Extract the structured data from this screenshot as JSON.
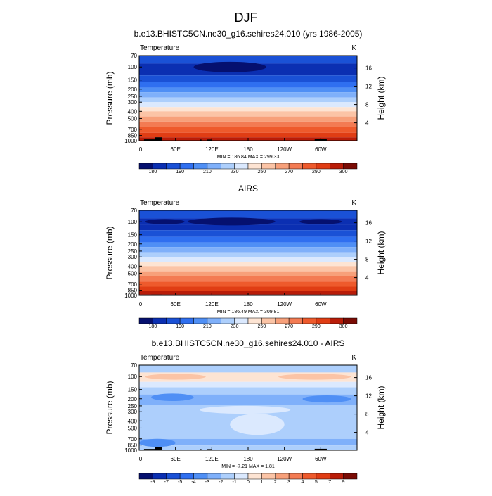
{
  "figure_title": "DJF",
  "colors": {
    "temp_palette": [
      "#05106f",
      "#0b2fb2",
      "#1a51d6",
      "#2f6ff0",
      "#4f8ff5",
      "#7fb0fa",
      "#adcffc",
      "#dbe9fe",
      "#fde4d3",
      "#fbc4a6",
      "#f7a07a",
      "#f37b53",
      "#ee5a2c",
      "#e03d14",
      "#b91c08",
      "#7a0b04"
    ],
    "diff_palette": [
      "#05106f",
      "#0b2fb2",
      "#1a51d6",
      "#2f6ff0",
      "#4f8ff5",
      "#7fb0fa",
      "#adcffc",
      "#dbe9fe",
      "#fde4d3",
      "#fbc4a6",
      "#f7a07a",
      "#f37b53",
      "#ee5a2c",
      "#e03d14",
      "#b91c08",
      "#7a0b04"
    ],
    "topography": "#000000"
  },
  "chart_data": [
    {
      "type": "heatmap",
      "title": "b.e13.BHISTC5CN.ne30_g16.sehires24.010 (yrs 1986-2005)",
      "left_label": "Temperature",
      "right_label": "K",
      "ylabel": "Pressure (mb)",
      "y2label": "Height (km)",
      "x_ticks": [
        "0",
        "60E",
        "120E",
        "180",
        "120W",
        "60W"
      ],
      "x_range_deg_east": [
        0,
        360
      ],
      "pressure_ticks": [
        70,
        100,
        150,
        200,
        250,
        300,
        400,
        500,
        700,
        850,
        1000
      ],
      "pressure_range": [
        70,
        1000
      ],
      "height_ticks": [
        4,
        8,
        12,
        16
      ],
      "minmax_text": "MIN = 186.84   MAX = 299.33",
      "colorbar": {
        "tick_labels": [
          "180",
          "190",
          "210",
          "230",
          "250",
          "270",
          "290",
          "300"
        ],
        "tick_box_index": [
          1,
          3,
          5,
          7,
          9,
          11,
          13,
          15
        ]
      },
      "profile_levels": [
        {
          "p": 70,
          "c": 2
        },
        {
          "p": 90,
          "c": 1
        },
        {
          "p": 110,
          "c": 1
        },
        {
          "p": 130,
          "c": 2
        },
        {
          "p": 160,
          "c": 3
        },
        {
          "p": 190,
          "c": 4
        },
        {
          "p": 220,
          "c": 5
        },
        {
          "p": 260,
          "c": 6
        },
        {
          "p": 300,
          "c": 7
        },
        {
          "p": 350,
          "c": 8
        },
        {
          "p": 400,
          "c": 9
        },
        {
          "p": 470,
          "c": 10
        },
        {
          "p": 550,
          "c": 11
        },
        {
          "p": 650,
          "c": 12
        },
        {
          "p": 780,
          "c": 13
        },
        {
          "p": 900,
          "c": 14
        }
      ],
      "features": [
        {
          "kind": "blob",
          "lon": [
            90,
            210
          ],
          "p": [
            85,
            118
          ],
          "c": 0
        }
      ],
      "topo": [
        {
          "lon": [
            8,
            38
          ],
          "p": [
            960,
            1000
          ]
        },
        {
          "lon": [
            26,
            38
          ],
          "p": [
            900,
            1000
          ]
        },
        {
          "lon": [
            100,
            103
          ],
          "p": [
            965,
            1000
          ]
        },
        {
          "lon": [
            112,
            120
          ],
          "p": [
            965,
            1000
          ]
        },
        {
          "lon": [
            290,
            310
          ],
          "p": [
            955,
            1000
          ]
        }
      ]
    },
    {
      "type": "heatmap",
      "title": "AIRS",
      "left_label": "Temperature",
      "right_label": "K",
      "ylabel": "Pressure (mb)",
      "y2label": "Height (km)",
      "x_ticks": [
        "0",
        "60E",
        "120E",
        "180",
        "120W",
        "60W"
      ],
      "x_range_deg_east": [
        0,
        360
      ],
      "pressure_ticks": [
        70,
        100,
        150,
        200,
        250,
        300,
        400,
        500,
        700,
        850,
        1000
      ],
      "pressure_range": [
        70,
        1000
      ],
      "height_ticks": [
        4,
        8,
        12,
        16
      ],
      "minmax_text": "MIN = 186.49   MAX = 309.81",
      "colorbar": {
        "tick_labels": [
          "180",
          "190",
          "210",
          "230",
          "250",
          "270",
          "290",
          "300"
        ],
        "tick_box_index": [
          1,
          3,
          5,
          7,
          9,
          11,
          13,
          15
        ]
      },
      "profile_levels": [
        {
          "p": 70,
          "c": 2
        },
        {
          "p": 90,
          "c": 1
        },
        {
          "p": 110,
          "c": 1
        },
        {
          "p": 130,
          "c": 2
        },
        {
          "p": 160,
          "c": 3
        },
        {
          "p": 190,
          "c": 4
        },
        {
          "p": 220,
          "c": 5
        },
        {
          "p": 260,
          "c": 6
        },
        {
          "p": 300,
          "c": 7
        },
        {
          "p": 350,
          "c": 8
        },
        {
          "p": 400,
          "c": 9
        },
        {
          "p": 470,
          "c": 10
        },
        {
          "p": 550,
          "c": 11
        },
        {
          "p": 650,
          "c": 12
        },
        {
          "p": 760,
          "c": 13
        },
        {
          "p": 870,
          "c": 14
        },
        {
          "p": 960,
          "c": 15
        }
      ],
      "features": [
        {
          "kind": "blob",
          "lon": [
            10,
            75
          ],
          "p": [
            92,
            108
          ],
          "c": 0
        },
        {
          "kind": "blob",
          "lon": [
            80,
            225
          ],
          "p": [
            88,
            112
          ],
          "c": 0
        },
        {
          "kind": "blob",
          "lon": [
            265,
            335
          ],
          "p": [
            92,
            108
          ],
          "c": 0
        }
      ],
      "topo": [
        {
          "lon": [
            20,
            38
          ],
          "p": [
            975,
            1000
          ]
        }
      ]
    },
    {
      "type": "heatmap",
      "title": "b.e13.BHISTC5CN.ne30_g16.sehires24.010 - AIRS",
      "left_label": "Temperature",
      "right_label": "K",
      "ylabel": "Pressure (mb)",
      "y2label": "Height (km)",
      "x_ticks": [
        "0",
        "60E",
        "120E",
        "180",
        "120W",
        "60W"
      ],
      "x_range_deg_east": [
        0,
        360
      ],
      "pressure_ticks": [
        70,
        100,
        150,
        200,
        250,
        300,
        400,
        500,
        700,
        850,
        1000
      ],
      "pressure_range": [
        70,
        1000
      ],
      "height_ticks": [
        4,
        8,
        12,
        16
      ],
      "minmax_text": "MIN = -7.21   MAX =  1.81",
      "colorbar": {
        "tick_labels": [
          "-9",
          "-7",
          "-5",
          "-4",
          "-3",
          "-2",
          "-1",
          "0",
          "1",
          "2",
          "3",
          "4",
          "5",
          "7",
          "9"
        ],
        "tick_box_index": [
          1,
          2,
          3,
          4,
          5,
          6,
          7,
          8,
          9,
          10,
          11,
          12,
          13,
          14,
          15
        ]
      },
      "profile_levels": [
        {
          "p": 70,
          "c": 6
        },
        {
          "p": 88,
          "c": 8
        },
        {
          "p": 118,
          "c": 7
        },
        {
          "p": 140,
          "c": 6
        },
        {
          "p": 175,
          "c": 5
        },
        {
          "p": 240,
          "c": 6
        },
        {
          "p": 700,
          "c": 5
        },
        {
          "p": 860,
          "c": 6
        }
      ],
      "features": [
        {
          "kind": "blob",
          "lon": [
            10,
            110
          ],
          "p": [
            92,
            110
          ],
          "c": 9
        },
        {
          "kind": "blob",
          "lon": [
            130,
            210
          ],
          "p": [
            92,
            110
          ],
          "c": 8
        },
        {
          "kind": "blob",
          "lon": [
            230,
            350
          ],
          "p": [
            92,
            110
          ],
          "c": 9
        },
        {
          "kind": "blob",
          "lon": [
            20,
            90
          ],
          "p": [
            170,
            215
          ],
          "c": 4
        },
        {
          "kind": "blob",
          "lon": [
            270,
            350
          ],
          "p": [
            180,
            225
          ],
          "c": 4
        },
        {
          "kind": "blob",
          "lon": [
            100,
            250
          ],
          "p": [
            250,
            320
          ],
          "c": 7
        },
        {
          "kind": "blob",
          "lon": [
            150,
            240
          ],
          "p": [
            320,
            620
          ],
          "c": 7
        },
        {
          "kind": "blob",
          "lon": [
            30,
            130
          ],
          "p": [
            400,
            560
          ],
          "c": 6
        },
        {
          "kind": "blob",
          "lon": [
            0,
            60
          ],
          "p": [
            700,
            900
          ],
          "c": 4
        }
      ],
      "topo": [
        {
          "lon": [
            8,
            38
          ],
          "p": [
            960,
            1000
          ]
        },
        {
          "lon": [
            26,
            38
          ],
          "p": [
            900,
            1000
          ]
        },
        {
          "lon": [
            100,
            103
          ],
          "p": [
            965,
            1000
          ]
        },
        {
          "lon": [
            112,
            120
          ],
          "p": [
            965,
            1000
          ]
        },
        {
          "lon": [
            290,
            310
          ],
          "p": [
            955,
            1000
          ]
        }
      ]
    }
  ]
}
